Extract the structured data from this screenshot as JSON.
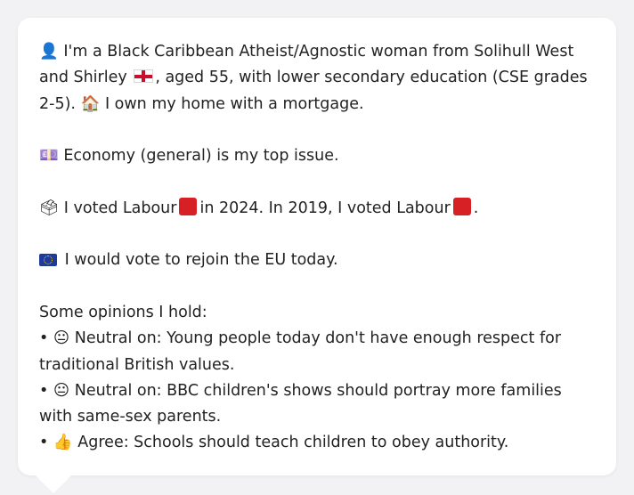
{
  "bio": {
    "icon": "person-silhouette-icon",
    "text_1": "I'm a Black Caribbean Atheist/Agnostic woman from Solihull West and Shirley",
    "flag": "england-flag-icon",
    "text_2": ", aged 55, with lower secondary education (CSE grades 2-5).",
    "home_icon": "house-icon",
    "text_3": "I own my home with a mortgage."
  },
  "issue": {
    "icon": "money-icon",
    "text": "Economy (general) is my top issue."
  },
  "vote": {
    "icon": "ballot-box-icon",
    "text_1": "I voted Labour",
    "party_color": "#d71f26",
    "text_2": "in 2024. In 2019, I voted Labour",
    "text_3": "."
  },
  "eu": {
    "icon": "eu-flag-icon",
    "text": "I would vote to rejoin the EU today."
  },
  "opinions": {
    "heading": "Some opinions I hold:",
    "items": [
      {
        "bullet": "•",
        "emoji": "neutral-face-icon",
        "glyph": "😐",
        "text": "Neutral on: Young people today don't have enough respect for traditional British values."
      },
      {
        "bullet": "•",
        "emoji": "neutral-face-icon",
        "glyph": "😐",
        "text": "Neutral on: BBC children's shows should portray more families with same-sex parents."
      },
      {
        "bullet": "•",
        "emoji": "thumbs-up-icon",
        "glyph": "👍",
        "text": "Agree: Schools should teach children to obey authority."
      }
    ]
  },
  "glyphs": {
    "person": "👤",
    "house": "🏠",
    "money": "💷",
    "ballot": "🗳"
  }
}
